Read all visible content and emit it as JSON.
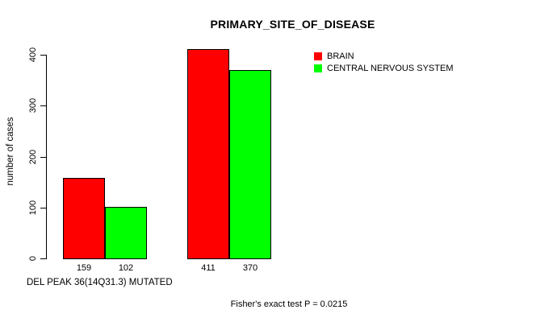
{
  "chart_data": {
    "type": "bar",
    "title": "PRIMARY_SITE_OF_DISEASE",
    "ylabel": "number of cases",
    "ylim": [
      0,
      400
    ],
    "yticks": [
      0,
      100,
      200,
      300,
      400
    ],
    "categories": [
      "",
      ""
    ],
    "series": [
      {
        "name": "BRAIN",
        "color": "#ff0000",
        "values": [
          159,
          411
        ]
      },
      {
        "name": "CENTRAL NERVOUS SYSTEM",
        "color": "#00ff00",
        "values": [
          102,
          370
        ]
      }
    ],
    "value_labels_shown": true,
    "grid": false,
    "legend_position": "right-of-plot-top",
    "bar_border_color": "#000000",
    "background_color": "#ffffff",
    "annotations": {
      "bottom_left": "DEL PEAK 36(14Q31.3) MUTATED",
      "bottom_center": "Fisher's exact test P = 0.0215"
    }
  }
}
